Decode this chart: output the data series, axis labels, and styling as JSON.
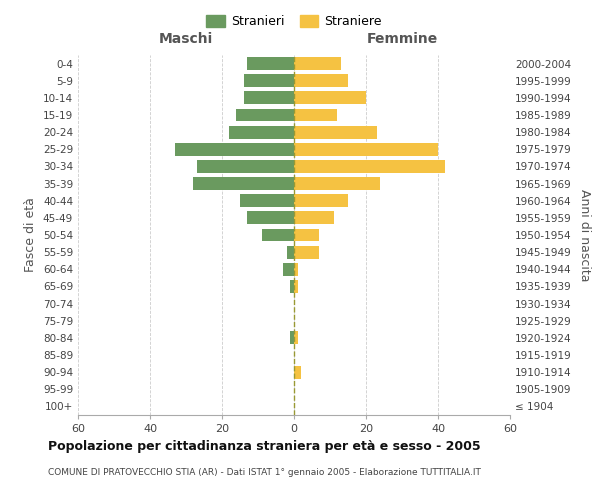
{
  "age_groups": [
    "100+",
    "95-99",
    "90-94",
    "85-89",
    "80-84",
    "75-79",
    "70-74",
    "65-69",
    "60-64",
    "55-59",
    "50-54",
    "45-49",
    "40-44",
    "35-39",
    "30-34",
    "25-29",
    "20-24",
    "15-19",
    "10-14",
    "5-9",
    "0-4"
  ],
  "birth_years": [
    "≤ 1904",
    "1905-1909",
    "1910-1914",
    "1915-1919",
    "1920-1924",
    "1925-1929",
    "1930-1934",
    "1935-1939",
    "1940-1944",
    "1945-1949",
    "1950-1954",
    "1955-1959",
    "1960-1964",
    "1965-1969",
    "1970-1974",
    "1975-1979",
    "1980-1984",
    "1985-1989",
    "1990-1994",
    "1995-1999",
    "2000-2004"
  ],
  "males": [
    0,
    0,
    0,
    0,
    1,
    0,
    0,
    1,
    3,
    2,
    9,
    13,
    15,
    28,
    27,
    33,
    18,
    16,
    14,
    14,
    13
  ],
  "females": [
    0,
    0,
    2,
    0,
    1,
    0,
    0,
    1,
    1,
    7,
    7,
    11,
    15,
    24,
    42,
    40,
    23,
    12,
    20,
    15,
    13
  ],
  "male_color": "#6a9a5f",
  "female_color": "#f5c242",
  "bg_color": "#ffffff",
  "grid_color": "#cccccc",
  "center_line_color": "#999933",
  "title": "Popolazione per cittadinanza straniera per età e sesso - 2005",
  "subtitle": "COMUNE DI PRATOVECCHIO STIA (AR) - Dati ISTAT 1° gennaio 2005 - Elaborazione TUTTITALIA.IT",
  "header_left": "Maschi",
  "header_right": "Femmine",
  "ylabel_left": "Fasce di età",
  "ylabel_right": "Anni di nascita",
  "legend_male": "Stranieri",
  "legend_female": "Straniere",
  "xlim": 60,
  "bar_height": 0.75
}
